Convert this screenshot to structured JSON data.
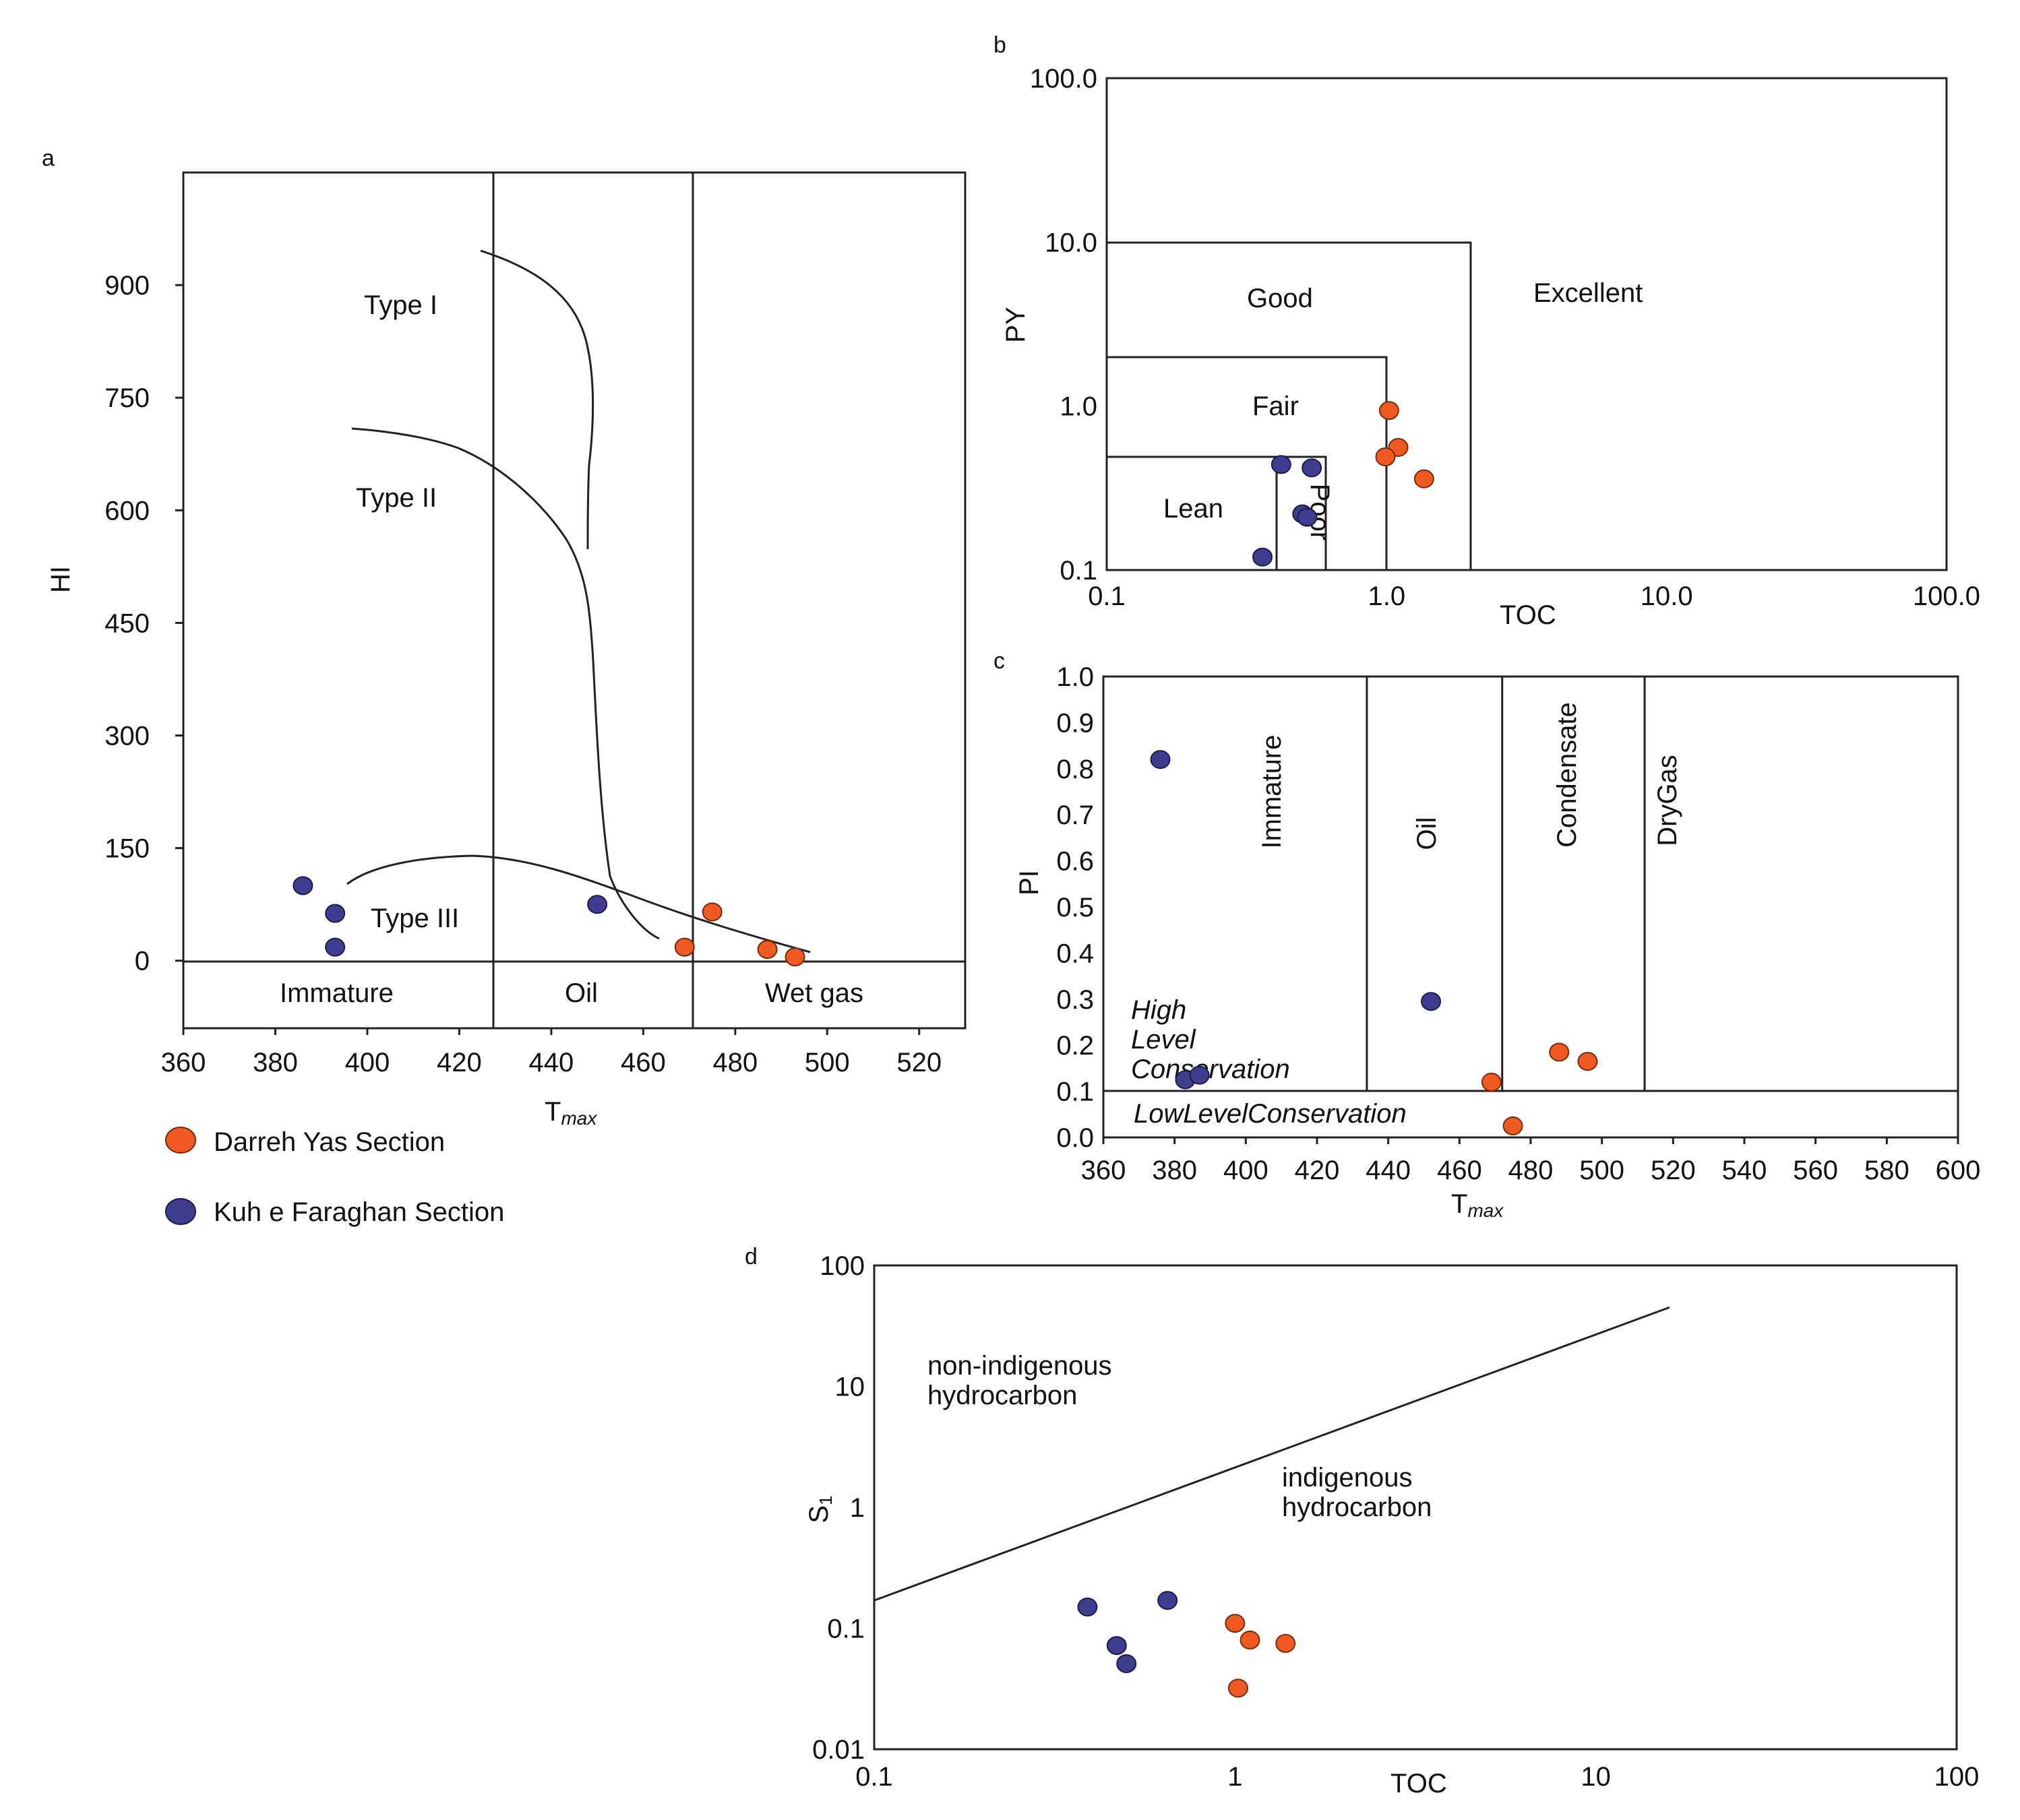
{
  "colors": {
    "darreh": "#f05a22",
    "kuh": "#3f3d8f"
  },
  "legend": [
    {
      "label": "Darreh Yas Section",
      "series": "darreh"
    },
    {
      "label": "Kuh e Faraghan Section",
      "series": "kuh"
    }
  ],
  "chart_data": [
    {
      "panel": "a",
      "type": "scatter",
      "xlabel": "T",
      "xlabel_sub": "max",
      "ylabel": "HI",
      "xlim": [
        360,
        530
      ],
      "ylim": [
        -90,
        1050
      ],
      "xticks": [
        "360",
        "380",
        "400",
        "420",
        "440",
        "460",
        "480",
        "500",
        "520"
      ],
      "yticks": [
        "0",
        "150",
        "300",
        "450",
        "600",
        "750",
        "900"
      ],
      "zones": [
        "Immature",
        "Oil",
        "Wet gas"
      ],
      "kerogen": [
        "Type I",
        "Type II",
        "Type III"
      ],
      "boundaries": [
        429,
        473
      ],
      "series": [
        {
          "name": "Darreh Yas Section",
          "key": "darreh",
          "x": [
            469,
            475,
            487,
            493
          ],
          "y": [
            18,
            65,
            15,
            5
          ]
        },
        {
          "name": "Kuh e Faraghan Section",
          "key": "kuh",
          "x": [
            386,
            393,
            393,
            450
          ],
          "y": [
            100,
            63,
            18,
            75
          ]
        }
      ]
    },
    {
      "panel": "b",
      "type": "scatter",
      "scale": "log",
      "xlabel": "TOC",
      "ylabel": "PY",
      "xlim": [
        0.1,
        100
      ],
      "ylim": [
        0.1,
        100
      ],
      "xticks": [
        "0.1",
        "1.0",
        "10.0",
        "100.0"
      ],
      "yticks": [
        "0.1",
        "1.0",
        "10.0",
        "100.0"
      ],
      "zones": [
        "Lean",
        "Poor",
        "Fair",
        "Good",
        "Excellent"
      ],
      "series": [
        {
          "name": "Darreh Yas Section",
          "key": "darreh",
          "x": [
            1.02,
            1.1,
            0.99,
            1.36
          ],
          "y": [
            0.94,
            0.56,
            0.49,
            0.36
          ]
        },
        {
          "name": "Kuh e Faraghan Section",
          "key": "kuh",
          "x": [
            0.42,
            0.54,
            0.5,
            0.52,
            0.36
          ],
          "y": [
            0.44,
            0.42,
            0.22,
            0.21,
            0.12
          ]
        }
      ]
    },
    {
      "panel": "c",
      "type": "scatter",
      "xlabel": "T",
      "xlabel_sub": "max",
      "ylabel": "PI",
      "xlim": [
        360,
        600
      ],
      "ylim": [
        0,
        1.0
      ],
      "xticks": [
        "360",
        "380",
        "400",
        "420",
        "440",
        "460",
        "480",
        "500",
        "520",
        "540",
        "560",
        "580",
        "600"
      ],
      "yticks": [
        "0.0",
        "0.1",
        "0.2",
        "0.3",
        "0.4",
        "0.5",
        "0.6",
        "0.7",
        "0.8",
        "0.9",
        "1.0"
      ],
      "zones": [
        "Immature",
        "Oil",
        "Condensate",
        "DryGas"
      ],
      "high_label": [
        "High",
        "Level",
        "Conservation"
      ],
      "low_label": "LowLevelConservation",
      "boundaries": [
        434,
        472,
        512
      ],
      "series": [
        {
          "name": "Darreh Yas Section",
          "key": "darreh",
          "x": [
            469,
            475,
            488,
            496
          ],
          "y": [
            0.12,
            0.025,
            0.185,
            0.165
          ]
        },
        {
          "name": "Kuh e Faraghan Section",
          "key": "kuh",
          "x": [
            376,
            383,
            387,
            452
          ],
          "y": [
            0.82,
            0.125,
            0.135,
            0.295
          ]
        }
      ]
    },
    {
      "panel": "d",
      "type": "scatter",
      "scale": "log",
      "xlabel": "TOC",
      "ylabel": "S",
      "ylabel_sub": "1",
      "xlim": [
        0.1,
        100
      ],
      "ylim": [
        0.01,
        100
      ],
      "xticks": [
        "0.1",
        "1",
        "10",
        "100"
      ],
      "yticks": [
        "0.01",
        "0.1",
        "1",
        "10",
        "100"
      ],
      "regions": {
        "upper": [
          "non-indigenous",
          "hydrocarbon"
        ],
        "lower": [
          "indigenous",
          "hydrocarbon"
        ]
      },
      "divider": {
        "x": [
          0.1,
          16
        ],
        "y": [
          0.17,
          45
        ]
      },
      "series": [
        {
          "name": "Darreh Yas Section",
          "key": "darreh",
          "x": [
            1.0,
            1.1,
            1.38,
            1.02
          ],
          "y": [
            0.11,
            0.08,
            0.075,
            0.032
          ]
        },
        {
          "name": "Kuh e Faraghan Section",
          "key": "kuh",
          "x": [
            0.39,
            0.65,
            0.47,
            0.5
          ],
          "y": [
            0.15,
            0.17,
            0.072,
            0.051
          ]
        }
      ]
    }
  ]
}
